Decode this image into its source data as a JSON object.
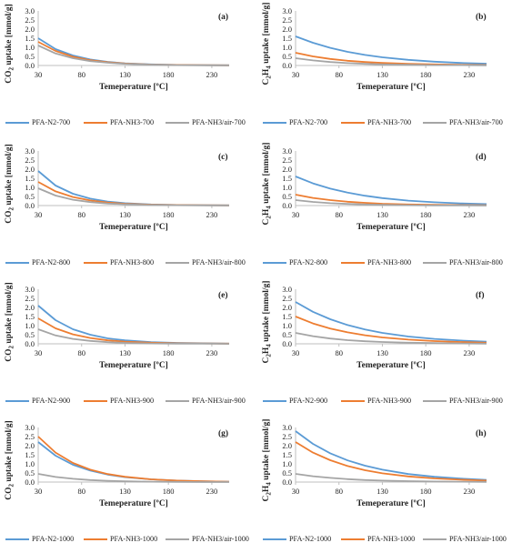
{
  "colors": {
    "n2": "#5b9bd5",
    "nh3": "#ed7d31",
    "air": "#a5a5a5",
    "axis": "#bfbfbf",
    "text": "#222222"
  },
  "chart_data": [
    {
      "type": "line",
      "panel_label": "(a)",
      "xlabel": "Temeperature [ºC]",
      "ylabel_pre": "CO",
      "ylabel_sub": "2",
      "ylabel_post": " uptake [mmol/g]",
      "xlim": [
        30,
        250
      ],
      "ylim": [
        0,
        3.0
      ],
      "x_ticks": [
        "30",
        "80",
        "130",
        "180",
        "230"
      ],
      "y_ticks": [
        "0.0",
        "0.5",
        "1.0",
        "1.5",
        "2.0",
        "2.5",
        "3.0"
      ],
      "series": [
        {
          "name": "PFA-N2-700",
          "x": [
            30,
            50,
            70,
            90,
            110,
            130,
            160,
            190,
            220,
            250
          ],
          "y": [
            1.5,
            0.9,
            0.55,
            0.33,
            0.2,
            0.12,
            0.06,
            0.03,
            0.02,
            0.01
          ]
        },
        {
          "name": "PFA-NH3-700",
          "x": [
            30,
            50,
            70,
            90,
            110,
            130,
            160,
            190,
            220,
            250
          ],
          "y": [
            1.3,
            0.8,
            0.48,
            0.29,
            0.18,
            0.11,
            0.05,
            0.03,
            0.02,
            0.01
          ]
        },
        {
          "name": "PFA-NH3/air-700",
          "x": [
            30,
            50,
            70,
            90,
            110,
            130,
            160,
            190,
            220,
            250
          ],
          "y": [
            1.1,
            0.66,
            0.4,
            0.24,
            0.15,
            0.09,
            0.04,
            0.02,
            0.01,
            0.01
          ]
        }
      ]
    },
    {
      "type": "line",
      "panel_label": "(b)",
      "xlabel": "Temeperature [ºC]",
      "ylabel_pre": "C",
      "ylabel_sub": "2",
      "ylabel_post": "H",
      "ylabel_sub2": "4",
      "ylabel_post2": " uptake [mmol/g]",
      "xlim": [
        30,
        250
      ],
      "ylim": [
        0,
        3.0
      ],
      "x_ticks": [
        "30",
        "80",
        "130",
        "180",
        "230"
      ],
      "y_ticks": [
        "0.0",
        "0.5",
        "1.0",
        "1.5",
        "2.0",
        "2.5",
        "3.0"
      ],
      "series": [
        {
          "name": "PFA-N2-700",
          "x": [
            30,
            50,
            70,
            90,
            110,
            130,
            160,
            190,
            220,
            250
          ],
          "y": [
            1.6,
            1.25,
            0.97,
            0.75,
            0.58,
            0.45,
            0.31,
            0.21,
            0.14,
            0.1
          ]
        },
        {
          "name": "PFA-NH3-700",
          "x": [
            30,
            50,
            70,
            90,
            110,
            130,
            160,
            190,
            220,
            250
          ],
          "y": [
            0.7,
            0.5,
            0.36,
            0.26,
            0.19,
            0.14,
            0.09,
            0.06,
            0.04,
            0.03
          ]
        },
        {
          "name": "PFA-NH3/air-700",
          "x": [
            30,
            50,
            70,
            90,
            110,
            130,
            160,
            190,
            220,
            250
          ],
          "y": [
            0.4,
            0.28,
            0.19,
            0.13,
            0.09,
            0.06,
            0.04,
            0.02,
            0.02,
            0.01
          ]
        }
      ]
    },
    {
      "type": "line",
      "panel_label": "(c)",
      "xlabel": "Temeperature [ºC]",
      "ylabel_pre": "CO",
      "ylabel_sub": "2",
      "ylabel_post": " uptake [mmol/g]",
      "xlim": [
        30,
        250
      ],
      "ylim": [
        0,
        3.0
      ],
      "x_ticks": [
        "30",
        "80",
        "130",
        "180",
        "230"
      ],
      "y_ticks": [
        "0.0",
        "0.5",
        "1.0",
        "1.5",
        "2.0",
        "2.5",
        "3.0"
      ],
      "series": [
        {
          "name": "PFA-N2-800",
          "x": [
            30,
            50,
            70,
            90,
            110,
            130,
            160,
            190,
            220,
            250
          ],
          "y": [
            1.9,
            1.1,
            0.65,
            0.38,
            0.22,
            0.13,
            0.06,
            0.03,
            0.02,
            0.01
          ]
        },
        {
          "name": "PFA-NH3-800",
          "x": [
            30,
            50,
            70,
            90,
            110,
            130,
            160,
            190,
            220,
            250
          ],
          "y": [
            1.3,
            0.78,
            0.47,
            0.28,
            0.17,
            0.1,
            0.05,
            0.03,
            0.02,
            0.01
          ]
        },
        {
          "name": "PFA-NH3/air-800",
          "x": [
            30,
            50,
            70,
            90,
            110,
            130,
            160,
            190,
            220,
            250
          ],
          "y": [
            0.95,
            0.55,
            0.32,
            0.19,
            0.11,
            0.07,
            0.03,
            0.02,
            0.01,
            0.01
          ]
        }
      ]
    },
    {
      "type": "line",
      "panel_label": "(d)",
      "xlabel": "Temeperature [ºC]",
      "ylabel_pre": "C",
      "ylabel_sub": "2",
      "ylabel_post": "H",
      "ylabel_sub2": "4",
      "ylabel_post2": " uptake [mmol/g]",
      "xlim": [
        30,
        250
      ],
      "ylim": [
        0,
        3.0
      ],
      "x_ticks": [
        "30",
        "80",
        "130",
        "180",
        "230"
      ],
      "y_ticks": [
        "0.0",
        "0.5",
        "1.0",
        "1.5",
        "2.0",
        "2.5",
        "3.0"
      ],
      "series": [
        {
          "name": "PFA-N2-800",
          "x": [
            30,
            50,
            70,
            90,
            110,
            130,
            160,
            190,
            220,
            250
          ],
          "y": [
            1.6,
            1.22,
            0.93,
            0.71,
            0.54,
            0.41,
            0.27,
            0.18,
            0.12,
            0.08
          ]
        },
        {
          "name": "PFA-NH3-800",
          "x": [
            30,
            50,
            70,
            90,
            110,
            130,
            160,
            190,
            220,
            250
          ],
          "y": [
            0.6,
            0.42,
            0.3,
            0.21,
            0.15,
            0.1,
            0.06,
            0.04,
            0.03,
            0.02
          ]
        },
        {
          "name": "PFA-NH3/air-800",
          "x": [
            30,
            50,
            70,
            90,
            110,
            130,
            160,
            190,
            220,
            250
          ],
          "y": [
            0.3,
            0.2,
            0.13,
            0.09,
            0.06,
            0.04,
            0.02,
            0.01,
            0.01,
            0.0
          ]
        }
      ]
    },
    {
      "type": "line",
      "panel_label": "(e)",
      "xlabel": "Temeperature [ºC]",
      "ylabel_pre": "CO",
      "ylabel_sub": "2",
      "ylabel_post": " uptake [mmol/g]",
      "xlim": [
        30,
        250
      ],
      "ylim": [
        0,
        3.0
      ],
      "x_ticks": [
        "30",
        "80",
        "130",
        "180",
        "230"
      ],
      "y_ticks": [
        "0.0",
        "0.5",
        "1.0",
        "1.5",
        "2.0",
        "2.5",
        "3.0"
      ],
      "series": [
        {
          "name": "PFA-N2-900",
          "x": [
            30,
            50,
            70,
            90,
            110,
            130,
            160,
            190,
            220,
            250
          ],
          "y": [
            2.1,
            1.3,
            0.8,
            0.5,
            0.3,
            0.19,
            0.09,
            0.05,
            0.03,
            0.01
          ]
        },
        {
          "name": "PFA-NH3-900",
          "x": [
            30,
            50,
            70,
            90,
            110,
            130,
            160,
            190,
            220,
            250
          ],
          "y": [
            1.4,
            0.85,
            0.52,
            0.32,
            0.19,
            0.12,
            0.06,
            0.03,
            0.02,
            0.01
          ]
        },
        {
          "name": "PFA-NH3/air-900",
          "x": [
            30,
            50,
            70,
            90,
            110,
            130,
            160,
            190,
            220,
            250
          ],
          "y": [
            0.8,
            0.46,
            0.27,
            0.16,
            0.09,
            0.05,
            0.02,
            0.01,
            0.01,
            0.0
          ]
        }
      ]
    },
    {
      "type": "line",
      "panel_label": "(f)",
      "xlabel": "Temeperature [ºC]",
      "ylabel_pre": "C",
      "ylabel_sub": "2",
      "ylabel_post": "H",
      "ylabel_sub2": "4",
      "ylabel_post2": " uptake [mmol/g]",
      "xlim": [
        30,
        250
      ],
      "ylim": [
        0,
        3.0
      ],
      "x_ticks": [
        "30",
        "80",
        "130",
        "180",
        "230"
      ],
      "y_ticks": [
        "0.0",
        "0.5",
        "1.0",
        "1.5",
        "2.0",
        "2.5",
        "3.0"
      ],
      "series": [
        {
          "name": "PFA-N2-900",
          "x": [
            30,
            50,
            70,
            90,
            110,
            130,
            160,
            190,
            220,
            250
          ],
          "y": [
            2.3,
            1.76,
            1.35,
            1.03,
            0.79,
            0.6,
            0.4,
            0.27,
            0.18,
            0.12
          ]
        },
        {
          "name": "PFA-NH3-900",
          "x": [
            30,
            50,
            70,
            90,
            110,
            130,
            160,
            190,
            220,
            250
          ],
          "y": [
            1.5,
            1.12,
            0.84,
            0.63,
            0.47,
            0.35,
            0.23,
            0.15,
            0.1,
            0.06
          ]
        },
        {
          "name": "PFA-NH3/air-900",
          "x": [
            30,
            50,
            70,
            90,
            110,
            130,
            160,
            190,
            220,
            250
          ],
          "y": [
            0.6,
            0.42,
            0.29,
            0.2,
            0.14,
            0.1,
            0.06,
            0.04,
            0.02,
            0.01
          ]
        }
      ]
    },
    {
      "type": "line",
      "panel_label": "(g)",
      "xlabel": "Temeperature [ºC]",
      "ylabel_pre": "CO",
      "ylabel_sub": "2",
      "ylabel_post": " uptake [mmol/g]",
      "xlim": [
        30,
        250
      ],
      "ylim": [
        0,
        3.0
      ],
      "x_ticks": [
        "30",
        "80",
        "130",
        "180",
        "230"
      ],
      "y_ticks": [
        "0.0",
        "0.5",
        "1.0",
        "1.5",
        "2.0",
        "2.5",
        "3.0"
      ],
      "series": [
        {
          "name": "PFA-N2-1000",
          "x": [
            30,
            50,
            70,
            90,
            110,
            130,
            160,
            190,
            220,
            250
          ],
          "y": [
            2.2,
            1.45,
            0.95,
            0.63,
            0.41,
            0.27,
            0.15,
            0.08,
            0.04,
            0.02
          ]
        },
        {
          "name": "PFA-NH3-1000",
          "x": [
            30,
            50,
            70,
            90,
            110,
            130,
            160,
            190,
            220,
            250
          ],
          "y": [
            2.5,
            1.62,
            1.05,
            0.68,
            0.44,
            0.29,
            0.15,
            0.08,
            0.04,
            0.02
          ]
        },
        {
          "name": "PFA-NH3/air-1000",
          "x": [
            30,
            50,
            70,
            90,
            110,
            130,
            160,
            190,
            220,
            250
          ],
          "y": [
            0.45,
            0.28,
            0.18,
            0.11,
            0.07,
            0.04,
            0.02,
            0.01,
            0.0,
            0.0
          ]
        }
      ]
    },
    {
      "type": "line",
      "panel_label": "(h)",
      "xlabel": "Temeperature [ºC]",
      "ylabel_pre": "C",
      "ylabel_sub": "2",
      "ylabel_post": "H",
      "ylabel_sub2": "4",
      "ylabel_post2": " uptake [mmol/g]",
      "xlim": [
        30,
        250
      ],
      "ylim": [
        0,
        3.0
      ],
      "x_ticks": [
        "30",
        "80",
        "130",
        "180",
        "230"
      ],
      "y_ticks": [
        "0.0",
        "0.5",
        "1.0",
        "1.5",
        "2.0",
        "2.5",
        "3.0"
      ],
      "series": [
        {
          "name": "PFA-N2-1000",
          "x": [
            30,
            50,
            70,
            90,
            110,
            130,
            160,
            190,
            220,
            250
          ],
          "y": [
            2.8,
            2.1,
            1.58,
            1.19,
            0.9,
            0.68,
            0.44,
            0.29,
            0.19,
            0.12
          ]
        },
        {
          "name": "PFA-NH3-1000",
          "x": [
            30,
            50,
            70,
            90,
            110,
            130,
            160,
            190,
            220,
            250
          ],
          "y": [
            2.2,
            1.62,
            1.2,
            0.88,
            0.65,
            0.48,
            0.31,
            0.2,
            0.13,
            0.08
          ]
        },
        {
          "name": "PFA-NH3/air-1000",
          "x": [
            30,
            50,
            70,
            90,
            110,
            130,
            160,
            190,
            220,
            250
          ],
          "y": [
            0.45,
            0.32,
            0.23,
            0.16,
            0.11,
            0.08,
            0.05,
            0.03,
            0.02,
            0.01
          ]
        }
      ]
    }
  ]
}
